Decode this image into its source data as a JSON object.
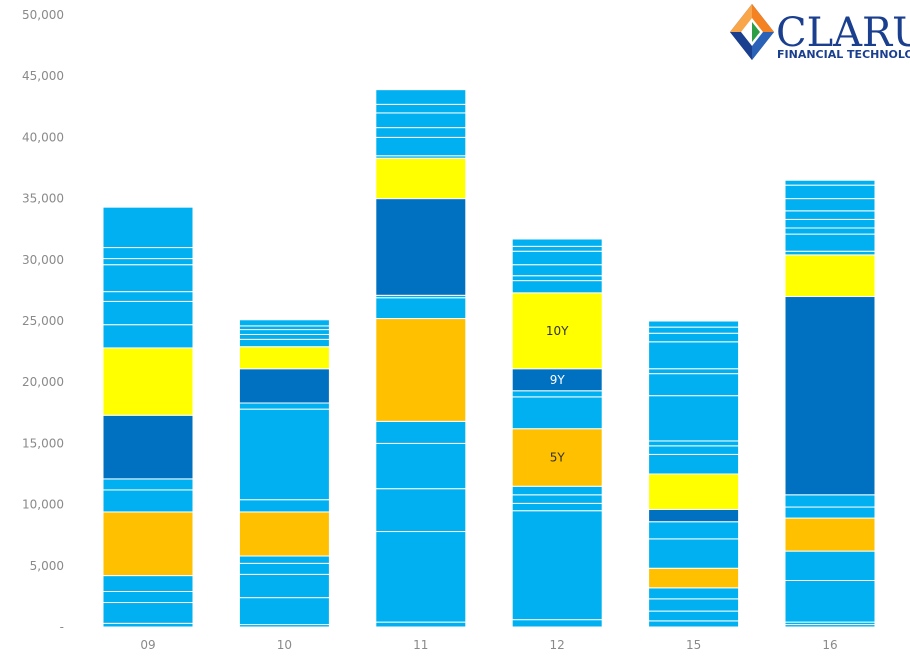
{
  "logo": {
    "name": "CLARUS",
    "tagline": "FINANCIAL TECHNOLOGY"
  },
  "colors": {
    "other": "#00b0f0",
    "5Y": "#ffc000",
    "9Y": "#0070c0",
    "10Y": "#ffff00",
    "background": "#ffffff",
    "gridtext": "#8a8a8a"
  },
  "chart_data": {
    "type": "bar",
    "stacked": true,
    "title": "",
    "xlabel": "",
    "ylabel": "",
    "ylim": [
      0,
      50000
    ],
    "yticks": [
      "-",
      "5,000",
      "10,000",
      "15,000",
      "20,000",
      "25,000",
      "30,000",
      "35,000",
      "40,000",
      "45,000",
      "50,000"
    ],
    "categories": [
      "09",
      "10",
      "11",
      "12",
      "15",
      "16"
    ],
    "grid": false,
    "legend": "none",
    "annotations": [
      {
        "category": "12",
        "series": "10Y",
        "text": "10Y"
      },
      {
        "category": "12",
        "series": "9Y",
        "text": "9Y"
      },
      {
        "category": "12",
        "series": "5Y",
        "text": "5Y"
      }
    ],
    "stacks": [
      {
        "category": "09",
        "segments": [
          {
            "series": "other",
            "value": 300
          },
          {
            "series": "other",
            "value": 1700
          },
          {
            "series": "other",
            "value": 900
          },
          {
            "series": "other",
            "value": 1300
          },
          {
            "series": "5Y",
            "value": 5200
          },
          {
            "series": "other",
            "value": 1800
          },
          {
            "series": "other",
            "value": 900
          },
          {
            "series": "9Y",
            "value": 5200
          },
          {
            "series": "10Y",
            "value": 5500
          },
          {
            "series": "other",
            "value": 1900
          },
          {
            "series": "other",
            "value": 1900
          },
          {
            "series": "other",
            "value": 800
          },
          {
            "series": "other",
            "value": 2200
          },
          {
            "series": "other",
            "value": 500
          },
          {
            "series": "other",
            "value": 900
          },
          {
            "series": "other",
            "value": 3300
          }
        ]
      },
      {
        "category": "10",
        "segments": [
          {
            "series": "other",
            "value": 200
          },
          {
            "series": "other",
            "value": 2200
          },
          {
            "series": "other",
            "value": 1900
          },
          {
            "series": "other",
            "value": 900
          },
          {
            "series": "other",
            "value": 600
          },
          {
            "series": "5Y",
            "value": 3600
          },
          {
            "series": "other",
            "value": 1000
          },
          {
            "series": "other",
            "value": 7400
          },
          {
            "series": "other",
            "value": 500
          },
          {
            "series": "9Y",
            "value": 2800
          },
          {
            "series": "10Y",
            "value": 1800
          },
          {
            "series": "other",
            "value": 600
          },
          {
            "series": "other",
            "value": 400
          },
          {
            "series": "other",
            "value": 400
          },
          {
            "series": "other",
            "value": 300
          },
          {
            "series": "other",
            "value": 500
          }
        ]
      },
      {
        "category": "11",
        "segments": [
          {
            "series": "other",
            "value": 400
          },
          {
            "series": "other",
            "value": 7400
          },
          {
            "series": "other",
            "value": 3500
          },
          {
            "series": "other",
            "value": 3700
          },
          {
            "series": "other",
            "value": 1800
          },
          {
            "series": "5Y",
            "value": 8400
          },
          {
            "series": "other",
            "value": 1700
          },
          {
            "series": "other",
            "value": 200
          },
          {
            "series": "9Y",
            "value": 7900
          },
          {
            "series": "10Y",
            "value": 3300
          },
          {
            "series": "other",
            "value": 200
          },
          {
            "series": "other",
            "value": 1500
          },
          {
            "series": "other",
            "value": 800
          },
          {
            "series": "other",
            "value": 1200
          },
          {
            "series": "other",
            "value": 700
          },
          {
            "series": "other",
            "value": 1200
          }
        ]
      },
      {
        "category": "12",
        "segments": [
          {
            "series": "other",
            "value": 600
          },
          {
            "series": "other",
            "value": 8900
          },
          {
            "series": "other",
            "value": 600
          },
          {
            "series": "other",
            "value": 700
          },
          {
            "series": "other",
            "value": 700
          },
          {
            "series": "5Y",
            "value": 4700
          },
          {
            "series": "other",
            "value": 2600
          },
          {
            "series": "other",
            "value": 500
          },
          {
            "series": "9Y",
            "value": 1800
          },
          {
            "series": "10Y",
            "value": 6200
          },
          {
            "series": "other",
            "value": 1000
          },
          {
            "series": "other",
            "value": 400
          },
          {
            "series": "other",
            "value": 900
          },
          {
            "series": "other",
            "value": 1100
          },
          {
            "series": "other",
            "value": 400
          },
          {
            "series": "other",
            "value": 600
          }
        ]
      },
      {
        "category": "15",
        "segments": [
          {
            "series": "other",
            "value": 500
          },
          {
            "series": "other",
            "value": 800
          },
          {
            "series": "other",
            "value": 1000
          },
          {
            "series": "other",
            "value": 900
          },
          {
            "series": "5Y",
            "value": 1600
          },
          {
            "series": "other",
            "value": 2400
          },
          {
            "series": "other",
            "value": 1400
          },
          {
            "series": "9Y",
            "value": 1000
          },
          {
            "series": "10Y",
            "value": 2900
          },
          {
            "series": "other",
            "value": 1600
          },
          {
            "series": "other",
            "value": 700
          },
          {
            "series": "other",
            "value": 400
          },
          {
            "series": "other",
            "value": 3700
          },
          {
            "series": "other",
            "value": 1800
          },
          {
            "series": "other",
            "value": 400
          },
          {
            "series": "other",
            "value": 2200
          },
          {
            "series": "other",
            "value": 700
          },
          {
            "series": "other",
            "value": 500
          },
          {
            "series": "other",
            "value": 500
          }
        ]
      },
      {
        "category": "16",
        "segments": [
          {
            "series": "other",
            "value": 200
          },
          {
            "series": "other",
            "value": 200
          },
          {
            "series": "other",
            "value": 3400
          },
          {
            "series": "other",
            "value": 2400
          },
          {
            "series": "5Y",
            "value": 2700
          },
          {
            "series": "other",
            "value": 900
          },
          {
            "series": "other",
            "value": 1000
          },
          {
            "series": "9Y",
            "value": 16200
          },
          {
            "series": "10Y",
            "value": 3400
          },
          {
            "series": "other",
            "value": 300
          },
          {
            "series": "other",
            "value": 1400
          },
          {
            "series": "other",
            "value": 500
          },
          {
            "series": "other",
            "value": 700
          },
          {
            "series": "other",
            "value": 700
          },
          {
            "series": "other",
            "value": 1000
          },
          {
            "series": "other",
            "value": 1100
          },
          {
            "series": "other",
            "value": 400
          }
        ]
      }
    ]
  }
}
